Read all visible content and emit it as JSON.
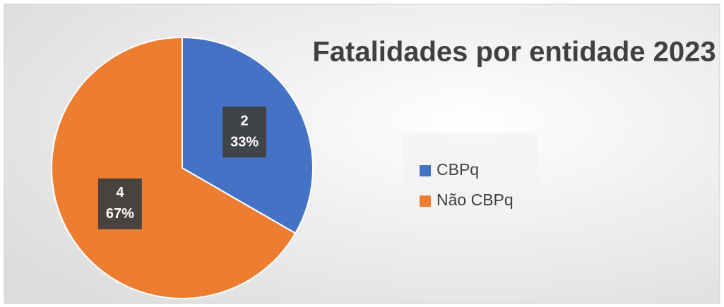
{
  "chart_data": {
    "type": "pie",
    "title": "Fatalidades por entidade 2023",
    "categories": [
      "CBPq",
      "Não CBPq"
    ],
    "values": [
      2,
      4
    ],
    "percent_labels": [
      "33%",
      "67%"
    ],
    "colors": [
      "#4472c4",
      "#ed7d31"
    ],
    "legend": "right"
  }
}
